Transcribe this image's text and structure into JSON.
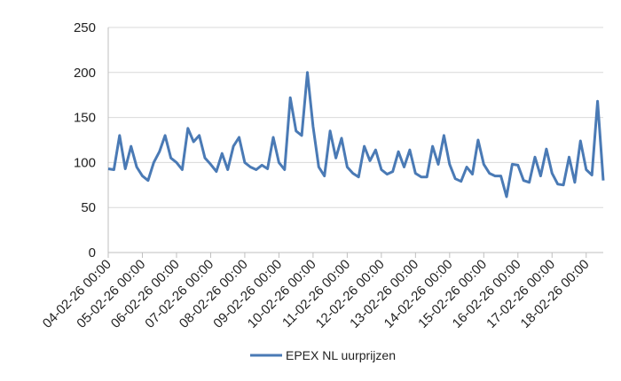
{
  "chart_data": {
    "type": "line",
    "categories": [
      "04-02-26 00:00",
      null,
      null,
      null,
      null,
      null,
      "05-02-26 00:00",
      null,
      null,
      null,
      null,
      null,
      "06-02-26 00:00",
      null,
      null,
      null,
      null,
      null,
      "07-02-26 00:00",
      null,
      null,
      null,
      null,
      null,
      "08-02-26 00:00",
      null,
      null,
      null,
      null,
      null,
      "09-02-26 00:00",
      null,
      null,
      null,
      null,
      null,
      "10-02-26 00:00",
      null,
      null,
      null,
      null,
      null,
      "11-02-26 00:00",
      null,
      null,
      null,
      null,
      null,
      "12-02-26 00:00",
      null,
      null,
      null,
      null,
      null,
      "13-02-26 00:00",
      null,
      null,
      null,
      null,
      null,
      "14-02-26 00:00",
      null,
      null,
      null,
      null,
      null,
      "15-02-26 00:00",
      null,
      null,
      null,
      null,
      null,
      "16-02-26 00:00",
      null,
      null,
      null,
      null,
      null,
      "17-02-26 00:00",
      null,
      null,
      null,
      null,
      null,
      "18-02-26 00:00",
      null,
      null,
      null
    ],
    "series": [
      {
        "name": "EPEX NL uurprijzen",
        "color": "#4a7ab5",
        "values": [
          93,
          92,
          130,
          93,
          118,
          95,
          85,
          80,
          100,
          112,
          130,
          105,
          100,
          92,
          138,
          123,
          130,
          105,
          98,
          90,
          110,
          92,
          118,
          128,
          100,
          95,
          92,
          97,
          93,
          128,
          100,
          92,
          172,
          135,
          130,
          200,
          140,
          95,
          85,
          135,
          105,
          127,
          95,
          88,
          84,
          118,
          102,
          114,
          92,
          87,
          90,
          112,
          95,
          114,
          88,
          84,
          84,
          118,
          98,
          130,
          98,
          82,
          79,
          95,
          87,
          125,
          98,
          88,
          85,
          85,
          62,
          98,
          97,
          80,
          78,
          106,
          85,
          115,
          88,
          76,
          75,
          106,
          78,
          124,
          92,
          86,
          168,
          80
        ]
      }
    ],
    "ylim": [
      0,
      250
    ],
    "yticks": [
      0,
      50,
      100,
      150,
      200,
      250
    ],
    "grid": true
  }
}
